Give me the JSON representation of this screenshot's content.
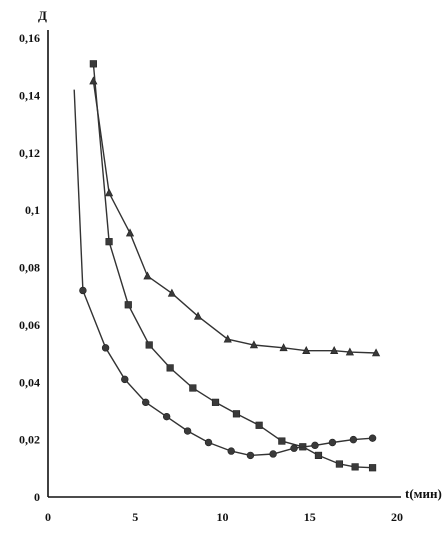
{
  "chart_data": {
    "type": "line",
    "title": "",
    "xlabel": "t(мин)",
    "ylabel": "Д",
    "xlim": [
      0,
      20
    ],
    "ylim": [
      0,
      0.16
    ],
    "x_ticks": [
      "0",
      "5",
      "10",
      "15",
      "20"
    ],
    "y_ticks": [
      "0",
      "0,02",
      "0,04",
      "0,06",
      "0,08",
      "0,1",
      "0,12",
      "0,14",
      "0,16"
    ],
    "grid": false,
    "legend": "none",
    "series": [
      {
        "marker": "triangle",
        "x": [
          2.6,
          3.5,
          4.7,
          5.7,
          7.1,
          8.6,
          10.3,
          11.8,
          13.5,
          14.8,
          16.4,
          17.3,
          18.8
        ],
        "y": [
          0.145,
          0.106,
          0.092,
          0.077,
          0.071,
          0.063,
          0.055,
          0.053,
          0.052,
          0.051,
          0.051,
          0.0505,
          0.0502
        ]
      },
      {
        "marker": "square",
        "x": [
          2.6,
          3.5,
          4.6,
          5.8,
          7.0,
          8.3,
          9.6,
          10.8,
          12.1,
          13.4,
          14.6,
          15.5,
          16.7,
          17.6,
          18.6
        ],
        "y": [
          0.151,
          0.089,
          0.067,
          0.053,
          0.045,
          0.038,
          0.033,
          0.029,
          0.025,
          0.0195,
          0.0175,
          0.0145,
          0.0115,
          0.0105,
          0.0102
        ]
      },
      {
        "marker": "circle",
        "x": [
          1.5,
          2.0,
          3.3,
          4.4,
          5.6,
          6.8,
          8.0,
          9.2,
          10.5,
          11.6,
          12.9,
          14.1,
          15.3,
          16.3,
          17.5,
          18.6
        ],
        "y": [
          0.142,
          0.072,
          0.052,
          0.041,
          0.033,
          0.028,
          0.023,
          0.019,
          0.016,
          0.0145,
          0.015,
          0.017,
          0.018,
          0.019,
          0.02,
          0.0205
        ]
      }
    ]
  }
}
